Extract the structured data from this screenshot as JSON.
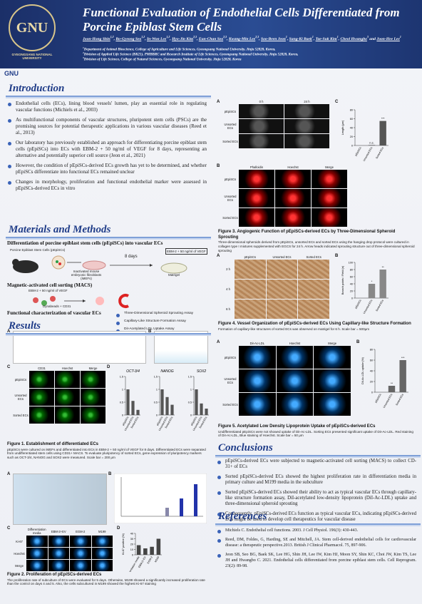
{
  "header": {
    "logo_text": "GNU",
    "logo_caption": "GYEONGSANG NATIONAL UNIVERSITY",
    "title": "Functional Evaluation of Endothelial Cells Differentiated from Porcine Epiblast Stem Cells",
    "authors": [
      {
        "name": "Joon-Hong Shin",
        "sup": "1,2",
        "sep": ", "
      },
      {
        "name": "Bo-Gyeong Seo",
        "sup": "1,2",
        "sep": ", "
      },
      {
        "name": "In-Won Lee",
        "sup": "1,2",
        "sep": ", "
      },
      {
        "name": "Hyo-Jin Kim",
        "sup": "2,3",
        "sep": ", "
      },
      {
        "name": "Eun-Chan Seo",
        "sup": "2,3",
        "sep": ", "
      },
      {
        "name": "Kwang-Min Lee",
        "sup": "2,3",
        "sep": ", "
      },
      {
        "name": "Soo-Been Jeon",
        "sup": "1",
        "sep": ", "
      },
      {
        "name": "Sang-Ki Baek",
        "sup": "1",
        "sep": ", "
      },
      {
        "name": "Tae-Suk Kim",
        "sup": "1",
        "sep": ", "
      },
      {
        "name": "Cheol Hwangbo",
        "sup": "3",
        "sep": " and "
      },
      {
        "name": "Joon-Hee Lee",
        "sup": "1"
      }
    ],
    "affiliations": [
      {
        "sup": "1",
        "text": "Department of Animal Bioscience, College of Agriculture and Life Sciences, Gyeongsang National University, Jinju 52828, Korea,"
      },
      {
        "sup": "2",
        "text": "Division of Applied Life Science (BK21), PMBBRC and Research Institute of Life Sciences, Gyeongsang National University, Jinju 52828, Korea,"
      },
      {
        "sup": "3",
        "text": "Division of Life Science, College of Natural Sciences, Gyeongsang National University, Jinju 52828, Korea"
      }
    ],
    "strip_logo": "GNU"
  },
  "introduction": {
    "heading": "Introduction",
    "bullets": [
      "Endothelial cells (ECs), lining blood vessels' lumen, play an essential role in regulating vascular functions (Michiels et al., 2003)",
      "As multifunctional components of vascular structures, pluripotent stem cells (PSCs) are the promising sources for potential therapeutic applications in various vascular diseases (Reed et al., 2013)",
      "Our laboratory has previously established an approach for differentiating porcine epiblast stem cells (pEpiSCs) into ECs with EBM-2 + 50 ng/ml of VEGF for 8 days, representing an alternative and potentially superior cell source (Jeon et al., 2021)",
      "However, the condition of pEpiSCs-derived ECs growth has yet to be determined, and whether pEpiSCs differentiate into functional ECs remained unclear",
      "Changes in morphology, proliferation and functional endothelial marker were assessed in pEpiSCs-derived ECs in vitro"
    ]
  },
  "methods": {
    "heading": "Materials and Methods",
    "sub1": "Differentiation of porcine epiblast stem cells (pEpiSCs) into vascular ECs",
    "pepiscs": "Porcine Epiblast Stem Cells (pEpiSCs)",
    "imefs": "Inactivated mouse embryonic fibroblasts (iMEFs)",
    "days": "8 days",
    "medium": "EBM-2 + 50 ng/ml of VEGF",
    "matrigel": "Matrigel",
    "sub2": "Magnetic-activated cell sorting (MACS)",
    "medium2": "EBM-2 + 50 ng/ml of VEGF",
    "beads": "Dynabeads + CD31",
    "sub3": "Functional characterization of vascular ECs",
    "assays": [
      "Three-Dimensional Spheroid Sprouting Assay",
      "Capillary-Like Structure Formation Assay",
      "DiI-Acetylated LDL Uptake Assay"
    ]
  },
  "results": {
    "heading": "Results",
    "figure1": {
      "labels": [
        "A",
        "B",
        "C",
        "D"
      ],
      "grid": {
        "columns": [
          "CD31",
          "Hoechst",
          "Merge"
        ],
        "rows": [
          "pEpiSCs",
          "Unsorted ECs",
          "Sorted ECs"
        ]
      },
      "charts": [
        {
          "type": "bar",
          "title": "OCT-3/4",
          "categories": [
            "pEpiSCs",
            "Unsorted ECs",
            "Sorted ECs"
          ],
          "values": [
            1,
            0.55,
            0.2
          ],
          "color": "#555555",
          "ylim": [
            0,
            1.5
          ],
          "yticks": [
            0,
            0.5,
            1,
            1.5
          ]
        },
        {
          "type": "bar",
          "title": "NANOG",
          "categories": [
            "pEpiSCs",
            "Unsorted ECs",
            "Sorted ECs"
          ],
          "values": [
            1,
            0.7,
            0.4
          ],
          "color": "#555555",
          "ylim": [
            0,
            1.5
          ],
          "yticks": [
            0,
            0.5,
            1,
            1.5
          ]
        },
        {
          "type": "bar",
          "title": "SOX2",
          "categories": [
            "pEpiSCs",
            "Unsorted ECs",
            "Sorted ECs"
          ],
          "values": [
            1,
            0.45,
            0.25
          ],
          "color": "#555555",
          "ylim": [
            0,
            1.5
          ],
          "yticks": [
            0,
            0.5,
            1,
            1.5
          ]
        }
      ],
      "caption_title": "Figure 1. Establishment of differentiated ECs",
      "caption": "pEpiSCs were cultured on iMEFs and differentiated into ECs in EBM-2 + 50 ng/ml of VEGF for 8 days. Differentiated ECs were separated from undifferentiated stem cells using CD31+ MACS. To evaluate pluripotency of sorted ECs, gene expression of pluripotency markers such as OCT-3/4, NANOG and SOX2 were measured. Scale bar = 200 μm"
    },
    "figure2": {
      "labels": [
        "A",
        "B",
        "C",
        "D"
      ],
      "grid": {
        "columns": [
          "Differentiation media",
          "EBM-2+EV",
          "EGM-2",
          "M199"
        ],
        "rows": [
          "Ki-67",
          "Hoechst",
          "Merge"
        ]
      },
      "chart": {
        "type": "bar",
        "categories": [
          "Differentiation media",
          "EBM-2+EV",
          "EGM-2",
          "M199"
        ],
        "values": [
          18,
          12,
          15,
          30
        ],
        "color": "#444444",
        "ylim": [
          0,
          40
        ],
        "yticks": [
          0,
          10,
          20,
          30,
          40
        ],
        "ylabel": "Ki-67 positive (%)"
      },
      "caption_title": "Figure 2. Proliferation of pEpiSCs-derived ECs",
      "caption": "The proliferation rate of subculture of ECs were evaluated for 5 days. Otherwise, M199 showed a significantly increased proliferation rate than the control on days 4 and 5. Also, the cells subcultured in M199 showed the highest Ki-67 staining"
    }
  },
  "figure3": {
    "labels": [
      "A",
      "B",
      "C"
    ],
    "grid_a": {
      "columns": [
        "0 h",
        "24 h"
      ],
      "rows": [
        "pEpiSCs",
        "Unsorted ECs",
        "Sorted ECs"
      ]
    },
    "grid_b": {
      "columns": [
        "Phalloidin",
        "Hoechst",
        "Merge"
      ],
      "rows": [
        "pEpiSCs",
        "Unsorted ECs",
        "Sorted ECs"
      ]
    },
    "chart": {
      "type": "bar",
      "categories": [
        "pEpiSCs",
        "Unsorted ECs",
        "Sorted ECs"
      ],
      "values": [
        0,
        1,
        55
      ],
      "color": "#555555",
      "ylim": [
        0,
        80
      ],
      "yticks": [
        0,
        20,
        40,
        60,
        80
      ],
      "ylabel": "Length (μm)",
      "annotations": [
        null,
        "n.s.",
        "***"
      ]
    },
    "caption_title": "Figure 3. Angiogenic Function of pEpiSCs-derived ECs by Three-Dimensional Spheroid Sprouting",
    "caption": "Three-dimensional spheroids derived from pEpiSCs, unsorted ECs and sorted ECs using the hanging drop protocol were cultured in collagen type I mixtures supplemented with EGCS for 24 h. Arrow heads indicated sprouting structure out of three-dimensional spheroid sprouting"
  },
  "figure4": {
    "labels": [
      "A",
      "B"
    ],
    "grid": {
      "columns": [
        "pEpiSCs",
        "Unsorted ECs",
        "Sorted ECs"
      ],
      "rows": [
        "2 h",
        "4 h",
        "6 h"
      ]
    },
    "chart": {
      "type": "bar",
      "categories": [
        "pEpiSCs",
        "Unsorted ECs",
        "Sorted ECs"
      ],
      "values": [
        0,
        40,
        80
      ],
      "color": "#888888",
      "ylim": [
        0,
        100
      ],
      "yticks": [
        0,
        20,
        40,
        60,
        80,
        100
      ],
      "ylabel": "Branch points / Field (n)",
      "annotations": [
        null,
        "*",
        "**"
      ]
    },
    "caption_title": "Figure 4. Vessel Organization of pEpiSCs-derived ECs Using Capillary-like Structure Formation",
    "caption": "Formation of capillary-like structures of sorted ECs was observed on matrigel for 6 h. Scale bar = 500μm"
  },
  "figure5": {
    "labels": [
      "A",
      "B"
    ],
    "grid": {
      "columns": [
        "DiI-Ac-LDL",
        "Hoechst",
        "Merge"
      ],
      "rows": [
        "pEpiSCs",
        "Unsorted ECs",
        "Sorted ECs"
      ]
    },
    "chart": {
      "type": "bar",
      "categories": [
        "pEpiSCs",
        "Unsorted ECs",
        "Sorted ECs"
      ],
      "values": [
        0,
        12,
        60
      ],
      "color": "#666666",
      "ylim": [
        0,
        80
      ],
      "yticks": [
        0,
        20,
        40,
        60,
        80
      ],
      "ylabel": "DiI-Ac-LDL uptake (%)",
      "annotations": [
        null,
        "**",
        "***"
      ]
    },
    "caption_title": "Figure 5. Acetylated Low Density Lipoprotein Uptake of pEpiSCs-derived ECs",
    "caption": "Undifferentiated pEpiSCs were not showed uptake of DiI-Ac-LDL. Sorting ECs presented significant uptake of DiI-Ac-LDL. Red staining of DiI-Ac-LDL, Blue staining of Hoechst. Scale bar = 50 μm"
  },
  "conclusions": {
    "heading": "Conclusions",
    "bullets": [
      "pEpiSCs-derived ECs were subjected to magnetic-activated cell sorting (MACS) to collect CD-31+ of ECs",
      "Sorted pEpiSCs-derived ECs showed the highest proliferation rate in differentiation media in primary culture and M199 media in the subculture",
      "Sorted pEpiSCs-derived ECs showed their ability to act as typical vascular ECs through capillary-like structure formation assay, DiI-acetylated low-density lipoprotein (DiI-Ac-LDL) uptake and three-dimensional spheroid sprouting",
      "Consequently, pEpiSCs-derived ECs function as typical vascular ECs, indicating pEpiSCs-derived ECs might be used to develop cell therapeutics for vascular disease"
    ]
  },
  "references": {
    "heading": "References",
    "items": [
      "Michiels C. Endothelial cell functions. 2003. J Cell Physiol. 196(3): 430-443.",
      "Reed, DM, Foldes, G, Harding, SE and Mitchell, JA. Stem cell-derived endothelial cells for cardiovascular disease: a therapeutic perspective.2013. British J Clinical Pharmacol. 75, 897-906.",
      "Jeon SB, Seo BG, Baek SK, Lee HG, Shin JH, Lee IW, Kim HJ, Moon SY, Shin KC, Choi JW, Kim TS, Lee JH and Hwangbo C. 2021. Endothelial cells differentiated from porcine epiblast stem cells. Cell Reprogram. 23(2): 89-98."
    ]
  }
}
